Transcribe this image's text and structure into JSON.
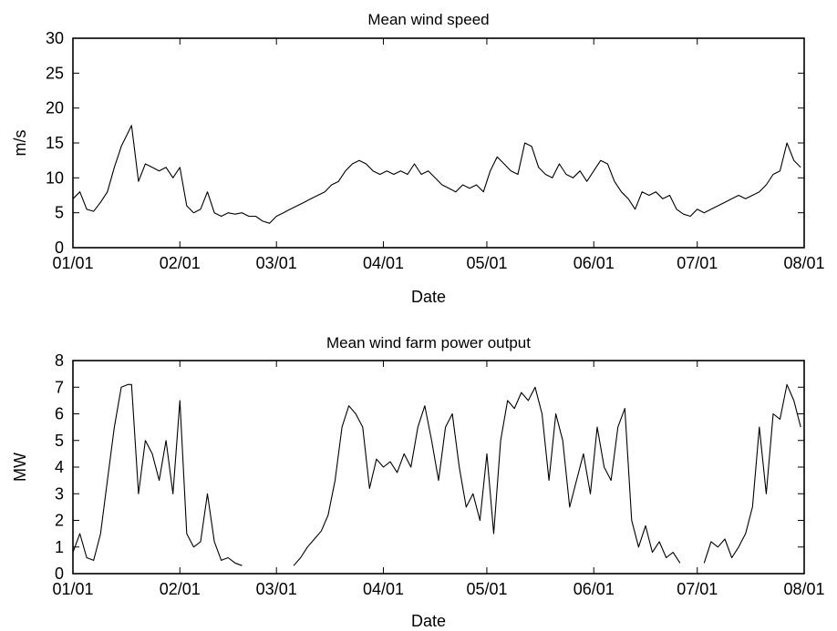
{
  "chart_data": [
    {
      "type": "line",
      "title": "Mean wind speed",
      "xlabel": "Date",
      "ylabel": "m/s",
      "ylim": [
        0,
        30
      ],
      "yticks": [
        "0",
        "5",
        "10",
        "15",
        "20",
        "25",
        "30"
      ],
      "xticks": [
        "01/01",
        "02/01",
        "03/01",
        "04/01",
        "05/01",
        "06/01",
        "07/01",
        "08/01"
      ],
      "grid": false,
      "legend": "none",
      "series": [
        {
          "color": "#000000",
          "x": [
            "01/01",
            "01/03",
            "01/05",
            "01/07",
            "01/09",
            "01/11",
            "01/13",
            "01/15",
            "01/17",
            "01/18",
            "01/20",
            "01/22",
            "01/24",
            "01/26",
            "01/28",
            "01/30",
            "02/01",
            "02/03",
            "02/05",
            "02/07",
            "02/09",
            "02/11",
            "02/13",
            "02/15",
            "02/17",
            "02/19",
            "02/21",
            "02/23",
            "02/25",
            "02/27",
            "03/01",
            "03/03",
            "03/05",
            "03/07",
            "03/09",
            "03/11",
            "03/13",
            "03/15",
            "03/17",
            "03/19",
            "03/21",
            "03/23",
            "03/25",
            "03/27",
            "03/29",
            "03/31",
            "04/02",
            "04/04",
            "04/06",
            "04/08",
            "04/10",
            "04/12",
            "04/14",
            "04/16",
            "04/18",
            "04/20",
            "04/22",
            "04/24",
            "04/26",
            "04/28",
            "04/30",
            "05/02",
            "05/04",
            "05/06",
            "05/08",
            "05/10",
            "05/12",
            "05/14",
            "05/16",
            "05/18",
            "05/20",
            "05/22",
            "05/24",
            "05/26",
            "05/28",
            "05/30",
            "06/01",
            "06/03",
            "06/05",
            "06/07",
            "06/09",
            "06/11",
            "06/13",
            "06/15",
            "06/17",
            "06/19",
            "06/21",
            "06/23",
            "06/25",
            "06/27",
            "06/29",
            "07/01",
            "07/03",
            "07/05",
            "07/07",
            "07/09",
            "07/11",
            "07/13",
            "07/15",
            "07/17",
            "07/19",
            "07/21",
            "07/23",
            "07/25",
            "07/27",
            "07/29",
            "07/31"
          ],
          "y": [
            7.0,
            8.0,
            5.5,
            5.2,
            6.5,
            8.0,
            11.5,
            14.5,
            16.5,
            17.5,
            9.5,
            12.0,
            11.5,
            11.0,
            11.5,
            10.0,
            11.5,
            6.0,
            5.0,
            5.5,
            8.0,
            5.0,
            4.5,
            5.0,
            4.8,
            5.0,
            4.5,
            4.5,
            3.8,
            3.5,
            4.5,
            5.0,
            5.5,
            6.0,
            6.5,
            7.0,
            7.5,
            8.0,
            9.0,
            9.5,
            11.0,
            12.0,
            12.5,
            12.0,
            11.0,
            10.5,
            11.0,
            10.5,
            11.0,
            10.5,
            12.0,
            10.5,
            11.0,
            10.0,
            9.0,
            8.5,
            8.0,
            9.0,
            8.5,
            9.0,
            8.0,
            11.0,
            13.0,
            12.0,
            11.0,
            10.5,
            15.0,
            14.5,
            11.5,
            10.5,
            10.0,
            12.0,
            10.5,
            10.0,
            11.0,
            9.5,
            11.0,
            12.5,
            12.0,
            9.5,
            8.0,
            7.0,
            5.5,
            8.0,
            7.5,
            8.0,
            7.0,
            7.5,
            5.5,
            4.8,
            4.5,
            5.5,
            5.0,
            5.5,
            6.0,
            6.5,
            7.0,
            7.5,
            7.0,
            7.5,
            8.0,
            9.0,
            10.5,
            11.0,
            15.0,
            12.5,
            11.5
          ]
        }
      ]
    },
    {
      "type": "line",
      "title": "Mean wind farm power output",
      "xlabel": "Date",
      "ylabel": "MW",
      "ylim": [
        0,
        8
      ],
      "yticks": [
        "0",
        "1",
        "2",
        "3",
        "4",
        "5",
        "6",
        "7",
        "8"
      ],
      "xticks": [
        "01/01",
        "02/01",
        "03/01",
        "04/01",
        "05/01",
        "06/01",
        "07/01",
        "08/01"
      ],
      "grid": false,
      "legend": "none",
      "series": [
        {
          "color": "#000000",
          "segments": [
            {
              "x": [
                "01/01",
                "01/03",
                "01/05",
                "01/07",
                "01/09",
                "01/11",
                "01/13",
                "01/15",
                "01/17",
                "01/18",
                "01/20",
                "01/22",
                "01/24",
                "01/26",
                "01/28",
                "01/30",
                "02/01",
                "02/03",
                "02/05",
                "02/07",
                "02/09",
                "02/11",
                "02/13",
                "02/15",
                "02/17",
                "02/19"
              ],
              "y": [
                0.8,
                1.5,
                0.6,
                0.5,
                1.5,
                3.5,
                5.5,
                7.0,
                7.1,
                7.1,
                3.0,
                5.0,
                4.5,
                3.5,
                5.0,
                3.0,
                6.5,
                1.5,
                1.0,
                1.2,
                3.0,
                1.2,
                0.5,
                0.6,
                0.4,
                0.3
              ]
            },
            {
              "x": [
                "03/06",
                "03/08",
                "03/10",
                "03/12",
                "03/14",
                "03/16",
                "03/18",
                "03/20",
                "03/22",
                "03/24",
                "03/26",
                "03/28",
                "03/30",
                "04/01",
                "04/03",
                "04/05",
                "04/07",
                "04/09",
                "04/11",
                "04/13",
                "04/15",
                "04/17",
                "04/19",
                "04/21",
                "04/23",
                "04/25",
                "04/27",
                "04/29",
                "05/01",
                "05/03",
                "05/05",
                "05/07",
                "05/09",
                "05/11",
                "05/13",
                "05/15",
                "05/17",
                "05/19",
                "05/21",
                "05/23",
                "05/25",
                "05/27",
                "05/29",
                "05/31",
                "06/02",
                "06/04",
                "06/06",
                "06/08",
                "06/10",
                "06/12",
                "06/14",
                "06/16",
                "06/18",
                "06/20",
                "06/22",
                "06/24",
                "06/26"
              ],
              "y": [
                0.3,
                0.6,
                1.0,
                1.3,
                1.6,
                2.2,
                3.5,
                5.5,
                6.3,
                6.0,
                5.5,
                3.2,
                4.3,
                4.0,
                4.2,
                3.8,
                4.5,
                4.0,
                5.5,
                6.3,
                5.0,
                3.5,
                5.5,
                6.0,
                4.0,
                2.5,
                3.0,
                2.0,
                4.5,
                1.5,
                5.0,
                6.5,
                6.2,
                6.8,
                6.5,
                7.0,
                6.0,
                3.5,
                6.0,
                5.0,
                2.5,
                3.5,
                4.5,
                3.0,
                5.5,
                4.0,
                3.5,
                5.5,
                6.2,
                2.0,
                1.0,
                1.8,
                0.8,
                1.2,
                0.6,
                0.8,
                0.4
              ]
            },
            {
              "x": [
                "07/03",
                "07/05",
                "07/07",
                "07/09",
                "07/11",
                "07/13",
                "07/15",
                "07/17",
                "07/19",
                "07/21",
                "07/23",
                "07/25",
                "07/27",
                "07/29",
                "07/31"
              ],
              "y": [
                0.4,
                1.2,
                1.0,
                1.3,
                0.6,
                1.0,
                1.5,
                2.5,
                5.5,
                3.0,
                6.0,
                5.8,
                7.1,
                6.5,
                5.5
              ]
            }
          ]
        }
      ]
    }
  ]
}
